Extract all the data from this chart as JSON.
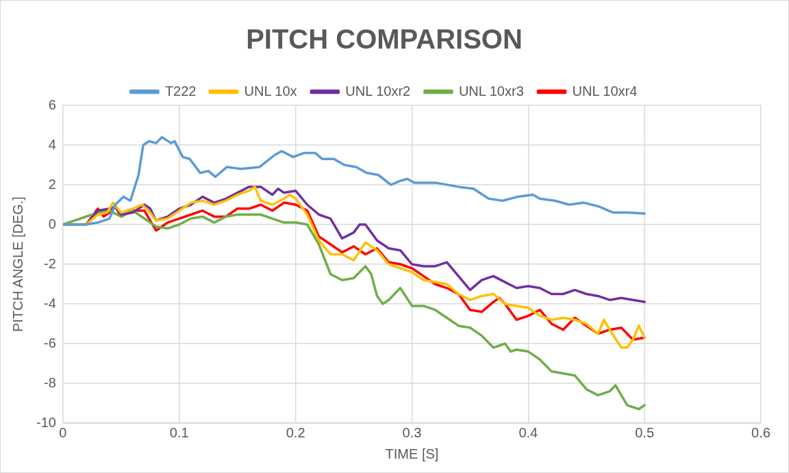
{
  "chart_data": {
    "type": "line",
    "title": "PITCH COMPARISON",
    "xlabel": "TIME [S]",
    "ylabel": "PITCH ANGLE [DEG.]",
    "xlim": [
      0,
      0.6
    ],
    "xticks": [
      0,
      0.1,
      0.2,
      0.3,
      0.4,
      0.5,
      0.6
    ],
    "ylim": [
      -10,
      6
    ],
    "yticks": [
      -10,
      -8,
      -6,
      -4,
      -2,
      0,
      2,
      4,
      6
    ],
    "grid": true,
    "legend": "top",
    "marker": "none",
    "line_style": "solid",
    "series": [
      {
        "name": "T222",
        "color": "#5b9bd5",
        "x": [
          0,
          0.02,
          0.03,
          0.04,
          0.045,
          0.052,
          0.058,
          0.065,
          0.069,
          0.074,
          0.08,
          0.085,
          0.093,
          0.096,
          0.103,
          0.109,
          0.118,
          0.125,
          0.131,
          0.141,
          0.153,
          0.169,
          0.182,
          0.188,
          0.198,
          0.207,
          0.217,
          0.223,
          0.233,
          0.242,
          0.252,
          0.261,
          0.271,
          0.282,
          0.29,
          0.296,
          0.302,
          0.321,
          0.34,
          0.353,
          0.366,
          0.378,
          0.391,
          0.404,
          0.41,
          0.423,
          0.435,
          0.448,
          0.461,
          0.473,
          0.486,
          0.5
        ],
        "values": [
          0,
          0,
          0.1,
          0.3,
          1,
          1.4,
          1.2,
          2.5,
          4,
          4.2,
          4.1,
          4.4,
          4.1,
          4.2,
          3.4,
          3.3,
          2.6,
          2.7,
          2.4,
          2.9,
          2.8,
          2.9,
          3.5,
          3.7,
          3.4,
          3.6,
          3.6,
          3.3,
          3.3,
          3,
          2.9,
          2.6,
          2.5,
          2,
          2.2,
          2.3,
          2.1,
          2.1,
          1.9,
          1.8,
          1.3,
          1.2,
          1.4,
          1.5,
          1.3,
          1.2,
          1,
          1.1,
          0.9,
          0.6,
          0.6,
          0.55
        ]
      },
      {
        "name": "UNL 10x",
        "color": "#ffc000",
        "x": [
          0,
          0.02,
          0.03,
          0.038,
          0.043,
          0.05,
          0.06,
          0.068,
          0.075,
          0.08,
          0.09,
          0.1,
          0.11,
          0.12,
          0.13,
          0.14,
          0.15,
          0.16,
          0.165,
          0.17,
          0.18,
          0.19,
          0.195,
          0.2,
          0.21,
          0.22,
          0.23,
          0.24,
          0.25,
          0.26,
          0.27,
          0.28,
          0.29,
          0.3,
          0.31,
          0.32,
          0.33,
          0.34,
          0.35,
          0.36,
          0.37,
          0.38,
          0.39,
          0.4,
          0.41,
          0.42,
          0.43,
          0.44,
          0.45,
          0.46,
          0.465,
          0.47,
          0.48,
          0.485,
          0.49,
          0.495,
          0.5
        ],
        "values": [
          0,
          0,
          0.5,
          0.6,
          1.1,
          0.6,
          0.8,
          1,
          0.6,
          0.2,
          0.3,
          0.7,
          1.1,
          1.2,
          1,
          1.2,
          1.5,
          1.7,
          1.9,
          1.2,
          1,
          1.3,
          1.5,
          1.3,
          0.5,
          -0.8,
          -1.5,
          -1.5,
          -1.8,
          -0.9,
          -1.3,
          -2,
          -2.2,
          -2.4,
          -2.8,
          -2.9,
          -3,
          -3.5,
          -3.8,
          -3.6,
          -3.5,
          -4,
          -4.1,
          -4.2,
          -4.6,
          -4.8,
          -4.7,
          -4.8,
          -5,
          -5.5,
          -4.8,
          -5.3,
          -6.2,
          -6.2,
          -5.8,
          -5.1,
          -5.7
        ]
      },
      {
        "name": "UNL 10xr2",
        "color": "#7030a0",
        "x": [
          0,
          0.02,
          0.03,
          0.04,
          0.045,
          0.05,
          0.06,
          0.07,
          0.075,
          0.08,
          0.09,
          0.1,
          0.11,
          0.12,
          0.13,
          0.14,
          0.15,
          0.16,
          0.17,
          0.18,
          0.185,
          0.19,
          0.2,
          0.21,
          0.22,
          0.23,
          0.24,
          0.25,
          0.255,
          0.26,
          0.27,
          0.28,
          0.29,
          0.3,
          0.31,
          0.32,
          0.33,
          0.34,
          0.35,
          0.36,
          0.37,
          0.38,
          0.39,
          0.4,
          0.41,
          0.42,
          0.43,
          0.44,
          0.45,
          0.46,
          0.47,
          0.48,
          0.49,
          0.5
        ],
        "values": [
          0,
          0,
          0.7,
          0.8,
          0.9,
          0.5,
          0.6,
          1,
          0.8,
          0.2,
          0.4,
          0.8,
          1,
          1.4,
          1.1,
          1.3,
          1.6,
          1.9,
          1.9,
          1.5,
          1.8,
          1.6,
          1.7,
          1,
          0.5,
          0.3,
          -0.7,
          -0.4,
          0,
          0,
          -0.8,
          -1.2,
          -1.3,
          -2,
          -2.1,
          -2.1,
          -1.9,
          -2.6,
          -3.3,
          -2.8,
          -2.6,
          -2.9,
          -3.2,
          -3.1,
          -3.2,
          -3.5,
          -3.5,
          -3.3,
          -3.5,
          -3.6,
          -3.8,
          -3.7,
          -3.8,
          -3.9
        ]
      },
      {
        "name": "UNL 10xr3",
        "color": "#70ad47",
        "x": [
          0,
          0.03,
          0.04,
          0.05,
          0.06,
          0.07,
          0.08,
          0.09,
          0.1,
          0.11,
          0.12,
          0.13,
          0.14,
          0.15,
          0.16,
          0.17,
          0.18,
          0.19,
          0.2,
          0.21,
          0.22,
          0.23,
          0.24,
          0.25,
          0.26,
          0.265,
          0.27,
          0.275,
          0.28,
          0.29,
          0.3,
          0.31,
          0.32,
          0.33,
          0.34,
          0.35,
          0.36,
          0.37,
          0.38,
          0.385,
          0.39,
          0.4,
          0.41,
          0.42,
          0.43,
          0.44,
          0.45,
          0.46,
          0.47,
          0.475,
          0.48,
          0.485,
          0.49,
          0.495,
          0.5
        ],
        "values": [
          0,
          0.6,
          0.7,
          0.4,
          0.7,
          0.3,
          -0.1,
          -0.2,
          0,
          0.3,
          0.4,
          0.1,
          0.4,
          0.5,
          0.5,
          0.5,
          0.3,
          0.1,
          0.1,
          0,
          -1,
          -2.5,
          -2.8,
          -2.7,
          -2.1,
          -2.5,
          -3.6,
          -4,
          -3.8,
          -3.2,
          -4.1,
          -4.1,
          -4.3,
          -4.7,
          -5.1,
          -5.2,
          -5.6,
          -6.2,
          -6,
          -6.4,
          -6.3,
          -6.4,
          -6.8,
          -7.4,
          -7.5,
          -7.6,
          -8.3,
          -8.6,
          -8.4,
          -8.1,
          -8.6,
          -9.1,
          -9.2,
          -9.3,
          -9.1
        ]
      },
      {
        "name": "UNL 10xr4",
        "color": "#ff0000",
        "x": [
          0,
          0.02,
          0.03,
          0.035,
          0.04,
          0.045,
          0.05,
          0.06,
          0.07,
          0.08,
          0.09,
          0.1,
          0.11,
          0.12,
          0.13,
          0.14,
          0.15,
          0.16,
          0.17,
          0.18,
          0.19,
          0.2,
          0.21,
          0.22,
          0.23,
          0.24,
          0.25,
          0.26,
          0.27,
          0.28,
          0.29,
          0.3,
          0.31,
          0.32,
          0.33,
          0.34,
          0.35,
          0.36,
          0.37,
          0.375,
          0.38,
          0.39,
          0.4,
          0.41,
          0.42,
          0.43,
          0.44,
          0.45,
          0.46,
          0.47,
          0.48,
          0.49,
          0.5
        ],
        "values": [
          0,
          0,
          0.8,
          0.4,
          0.6,
          0.9,
          0.4,
          0.7,
          0.7,
          -0.3,
          0.1,
          0.3,
          0.5,
          0.7,
          0.4,
          0.4,
          0.8,
          0.8,
          1,
          0.7,
          1.1,
          1,
          0.7,
          -0.6,
          -1,
          -1.4,
          -1.1,
          -1.5,
          -1.2,
          -1.9,
          -2,
          -2.2,
          -2.6,
          -3,
          -3.2,
          -3.5,
          -4.3,
          -4.4,
          -3.9,
          -3.7,
          -4,
          -4.8,
          -4.6,
          -4.3,
          -5,
          -5.3,
          -4.7,
          -5.1,
          -5.5,
          -5.3,
          -5.2,
          -5.8,
          -5.7
        ]
      }
    ]
  }
}
